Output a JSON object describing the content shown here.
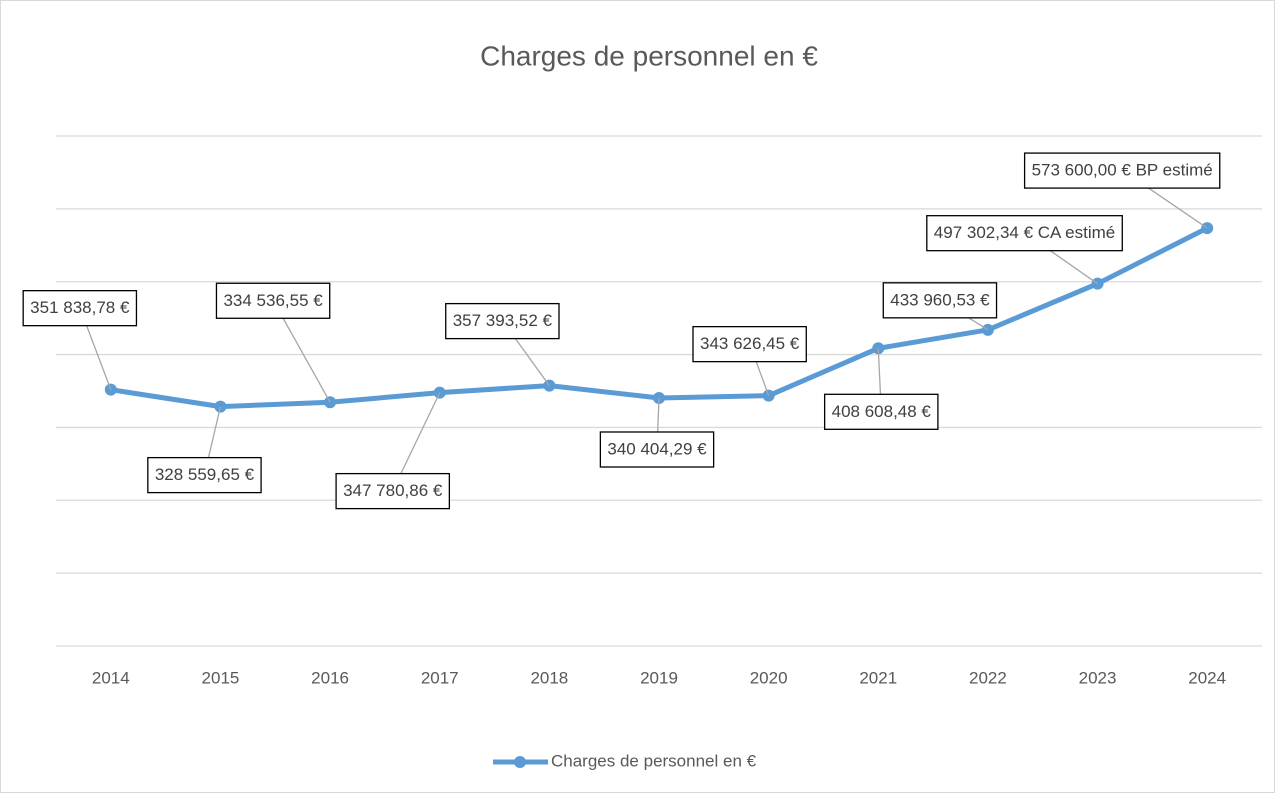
{
  "chart_data": {
    "type": "line",
    "title": "Charges de personnel en €",
    "categories": [
      "2014",
      "2015",
      "2016",
      "2017",
      "2018",
      "2019",
      "2020",
      "2021",
      "2022",
      "2023",
      "2024"
    ],
    "series": [
      {
        "name": "Charges de personnel en €",
        "color": "#5b9bd5",
        "values": [
          351838.78,
          328559.65,
          334536.55,
          347780.86,
          357393.52,
          340404.29,
          343626.45,
          408608.48,
          433960.53,
          497302.34,
          573600.0
        ],
        "value_labels": [
          "351 838,78 €",
          "328 559,65 €",
          "334 536,55 €",
          "347 780,86 €",
          "357 393,52 €",
          "340 404,29 €",
          "343 626,45 €",
          "408 608,48 €",
          "433 960,53 €",
          "497 302,34 € CA estimé",
          "573 600,00 € BP estimé"
        ]
      }
    ],
    "ylim": [
      0,
      700000
    ],
    "yticks": [
      0,
      100000,
      200000,
      300000,
      400000,
      500000,
      600000,
      700000
    ],
    "grid": true,
    "legend": "bottom"
  }
}
